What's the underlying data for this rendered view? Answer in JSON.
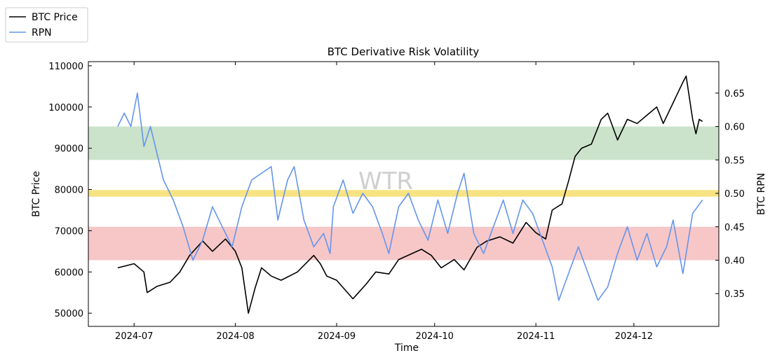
{
  "chart_data": {
    "type": "line",
    "title": "BTC Derivative Risk Volatility",
    "xlabel": "Time",
    "ylabel_left": "BTC Price",
    "ylabel_right": "BTC RPN",
    "watermark": "WTR",
    "xlim": [
      "2024-06-17",
      "2024-12-27"
    ],
    "ylim_left": [
      46800,
      111000
    ],
    "ylim_right": [
      0.301,
      0.697
    ],
    "x_ticks": [
      "2024-07-01",
      "2024-08-01",
      "2024-09-01",
      "2024-10-01",
      "2024-11-01",
      "2024-12-01"
    ],
    "x_tick_labels": [
      "2024-07",
      "2024-08",
      "2024-09",
      "2024-10",
      "2024-11",
      "2024-12"
    ],
    "y_ticks_left": [
      50000,
      60000,
      70000,
      80000,
      90000,
      100000,
      110000
    ],
    "y_tick_labels_left": [
      "50000",
      "60000",
      "70000",
      "80000",
      "90000",
      "100000",
      "110000"
    ],
    "y_ticks_right": [
      0.35,
      0.4,
      0.45,
      0.5,
      0.55,
      0.6,
      0.65
    ],
    "y_tick_labels_right": [
      "0.35",
      "0.40",
      "0.45",
      "0.50",
      "0.55",
      "0.60",
      "0.65"
    ],
    "legend": {
      "placement": "top-left, outside",
      "entries": [
        "BTC Price",
        "RPN"
      ]
    },
    "grid": false,
    "bands": [
      {
        "axis": "right",
        "from": 0.55,
        "to": 0.6,
        "color": "#c8e0c8"
      },
      {
        "axis": "right",
        "from": 0.495,
        "to": 0.505,
        "color": "#f7e27a"
      },
      {
        "axis": "right",
        "from": 0.4,
        "to": 0.45,
        "color": "#f7c4c4"
      }
    ],
    "series": [
      {
        "name": "BTC Price",
        "axis": "left",
        "color": "#000000",
        "points": [
          [
            "2024-06-26",
            61000
          ],
          [
            "2024-07-01",
            62000
          ],
          [
            "2024-07-04",
            60000
          ],
          [
            "2024-07-05",
            55000
          ],
          [
            "2024-07-08",
            56500
          ],
          [
            "2024-07-12",
            57500
          ],
          [
            "2024-07-15",
            60000
          ],
          [
            "2024-07-18",
            64000
          ],
          [
            "2024-07-22",
            67500
          ],
          [
            "2024-07-25",
            65000
          ],
          [
            "2024-07-29",
            68000
          ],
          [
            "2024-08-01",
            65000
          ],
          [
            "2024-08-03",
            61000
          ],
          [
            "2024-08-05",
            50000
          ],
          [
            "2024-08-07",
            56000
          ],
          [
            "2024-08-09",
            61000
          ],
          [
            "2024-08-12",
            59000
          ],
          [
            "2024-08-15",
            58000
          ],
          [
            "2024-08-20",
            60000
          ],
          [
            "2024-08-25",
            64000
          ],
          [
            "2024-08-27",
            62000
          ],
          [
            "2024-08-29",
            59000
          ],
          [
            "2024-09-01",
            58000
          ],
          [
            "2024-09-06",
            53500
          ],
          [
            "2024-09-10",
            57000
          ],
          [
            "2024-09-13",
            60000
          ],
          [
            "2024-09-17",
            59500
          ],
          [
            "2024-09-20",
            63000
          ],
          [
            "2024-09-27",
            65500
          ],
          [
            "2024-09-30",
            64000
          ],
          [
            "2024-10-03",
            61000
          ],
          [
            "2024-10-07",
            63000
          ],
          [
            "2024-10-10",
            60500
          ],
          [
            "2024-10-14",
            66000
          ],
          [
            "2024-10-17",
            67500
          ],
          [
            "2024-10-21",
            68500
          ],
          [
            "2024-10-25",
            67000
          ],
          [
            "2024-10-29",
            72000
          ],
          [
            "2024-11-01",
            69500
          ],
          [
            "2024-11-04",
            68000
          ],
          [
            "2024-11-06",
            75000
          ],
          [
            "2024-11-09",
            76500
          ],
          [
            "2024-11-11",
            82000
          ],
          [
            "2024-11-13",
            88000
          ],
          [
            "2024-11-15",
            90000
          ],
          [
            "2024-11-18",
            91000
          ],
          [
            "2024-11-21",
            97000
          ],
          [
            "2024-11-23",
            98500
          ],
          [
            "2024-11-26",
            92000
          ],
          [
            "2024-11-29",
            97000
          ],
          [
            "2024-12-02",
            96000
          ],
          [
            "2024-12-05",
            98000
          ],
          [
            "2024-12-08",
            100000
          ],
          [
            "2024-12-10",
            96000
          ],
          [
            "2024-12-13",
            101000
          ],
          [
            "2024-12-16",
            106000
          ],
          [
            "2024-12-17",
            107500
          ],
          [
            "2024-12-19",
            97000
          ],
          [
            "2024-12-20",
            93500
          ],
          [
            "2024-12-21",
            97000
          ],
          [
            "2024-12-22",
            96500
          ]
        ]
      },
      {
        "name": "RPN",
        "axis": "right",
        "color": "#6495ed",
        "points": [
          [
            "2024-06-26",
            0.6
          ],
          [
            "2024-06-28",
            0.62
          ],
          [
            "2024-06-30",
            0.6
          ],
          [
            "2024-07-02",
            0.65
          ],
          [
            "2024-07-04",
            0.57
          ],
          [
            "2024-07-06",
            0.6
          ],
          [
            "2024-07-08",
            0.56
          ],
          [
            "2024-07-10",
            0.52
          ],
          [
            "2024-07-13",
            0.49
          ],
          [
            "2024-07-16",
            0.45
          ],
          [
            "2024-07-19",
            0.4
          ],
          [
            "2024-07-22",
            0.43
          ],
          [
            "2024-07-25",
            0.48
          ],
          [
            "2024-07-28",
            0.45
          ],
          [
            "2024-07-31",
            0.42
          ],
          [
            "2024-08-03",
            0.48
          ],
          [
            "2024-08-06",
            0.52
          ],
          [
            "2024-08-09",
            0.53
          ],
          [
            "2024-08-12",
            0.54
          ],
          [
            "2024-08-14",
            0.46
          ],
          [
            "2024-08-17",
            0.52
          ],
          [
            "2024-08-19",
            0.54
          ],
          [
            "2024-08-22",
            0.46
          ],
          [
            "2024-08-25",
            0.42
          ],
          [
            "2024-08-28",
            0.44
          ],
          [
            "2024-08-30",
            0.41
          ],
          [
            "2024-08-31",
            0.48
          ],
          [
            "2024-09-03",
            0.52
          ],
          [
            "2024-09-06",
            0.47
          ],
          [
            "2024-09-09",
            0.5
          ],
          [
            "2024-09-12",
            0.48
          ],
          [
            "2024-09-15",
            0.44
          ],
          [
            "2024-09-17",
            0.41
          ],
          [
            "2024-09-20",
            0.48
          ],
          [
            "2024-09-23",
            0.5
          ],
          [
            "2024-09-26",
            0.46
          ],
          [
            "2024-09-29",
            0.43
          ],
          [
            "2024-10-02",
            0.49
          ],
          [
            "2024-10-05",
            0.44
          ],
          [
            "2024-10-08",
            0.5
          ],
          [
            "2024-10-10",
            0.53
          ],
          [
            "2024-10-13",
            0.44
          ],
          [
            "2024-10-16",
            0.41
          ],
          [
            "2024-10-19",
            0.45
          ],
          [
            "2024-10-22",
            0.49
          ],
          [
            "2024-10-25",
            0.44
          ],
          [
            "2024-10-28",
            0.49
          ],
          [
            "2024-10-31",
            0.47
          ],
          [
            "2024-11-03",
            0.43
          ],
          [
            "2024-11-06",
            0.39
          ],
          [
            "2024-11-08",
            0.34
          ],
          [
            "2024-11-11",
            0.38
          ],
          [
            "2024-11-14",
            0.42
          ],
          [
            "2024-11-17",
            0.38
          ],
          [
            "2024-11-20",
            0.34
          ],
          [
            "2024-11-23",
            0.36
          ],
          [
            "2024-11-26",
            0.41
          ],
          [
            "2024-11-29",
            0.45
          ],
          [
            "2024-12-02",
            0.4
          ],
          [
            "2024-12-05",
            0.44
          ],
          [
            "2024-12-08",
            0.39
          ],
          [
            "2024-12-11",
            0.42
          ],
          [
            "2024-12-13",
            0.46
          ],
          [
            "2024-12-16",
            0.38
          ],
          [
            "2024-12-19",
            0.47
          ],
          [
            "2024-12-22",
            0.49
          ]
        ]
      }
    ]
  }
}
